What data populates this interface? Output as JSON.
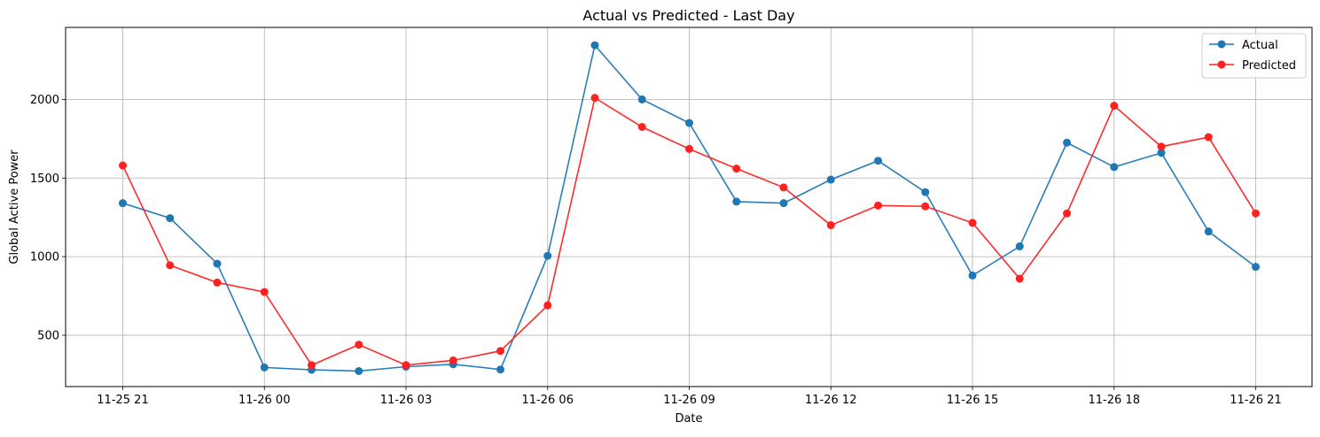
{
  "chart_data": {
    "type": "line",
    "title": "Actual vs Predicted - Last Day",
    "xlabel": "Date",
    "ylabel": "Global Active Power",
    "x_ticks": [
      "11-25 21",
      "11-26 00",
      "11-26 03",
      "11-26 06",
      "11-26 09",
      "11-26 12",
      "11-26 15",
      "11-26 18",
      "11-26 21"
    ],
    "y_ticks": [
      500,
      1000,
      1500,
      2000
    ],
    "grid": true,
    "legend_position": "top-right",
    "x": [
      "11-25 21:00",
      "11-25 22:00",
      "11-25 23:00",
      "11-26 00:00",
      "11-26 01:00",
      "11-26 02:00",
      "11-26 03:00",
      "11-26 04:00",
      "11-26 05:00",
      "11-26 06:00",
      "11-26 07:00",
      "11-26 08:00",
      "11-26 09:00",
      "11-26 10:00",
      "11-26 11:00",
      "11-26 12:00",
      "11-26 13:00",
      "11-26 14:00",
      "11-26 15:00",
      "11-26 16:00",
      "11-26 17:00",
      "11-26 18:00",
      "11-26 19:00",
      "11-26 20:00",
      "11-26 21:00"
    ],
    "series": [
      {
        "name": "Actual",
        "color": "#1f77b4",
        "values": [
          1340,
          1245,
          955,
          295,
          280,
          272,
          300,
          315,
          282,
          1005,
          2345,
          2000,
          1850,
          1350,
          1340,
          1490,
          1610,
          1410,
          880,
          1065,
          1725,
          1570,
          1660,
          1160,
          935
        ]
      },
      {
        "name": "Predicted",
        "color": "#ff2020",
        "values": [
          1580,
          945,
          835,
          775,
          310,
          440,
          310,
          340,
          400,
          690,
          2010,
          1825,
          1685,
          1560,
          1440,
          1200,
          1325,
          1320,
          1215,
          860,
          1275,
          1960,
          1700,
          1760,
          1275
        ]
      }
    ]
  }
}
